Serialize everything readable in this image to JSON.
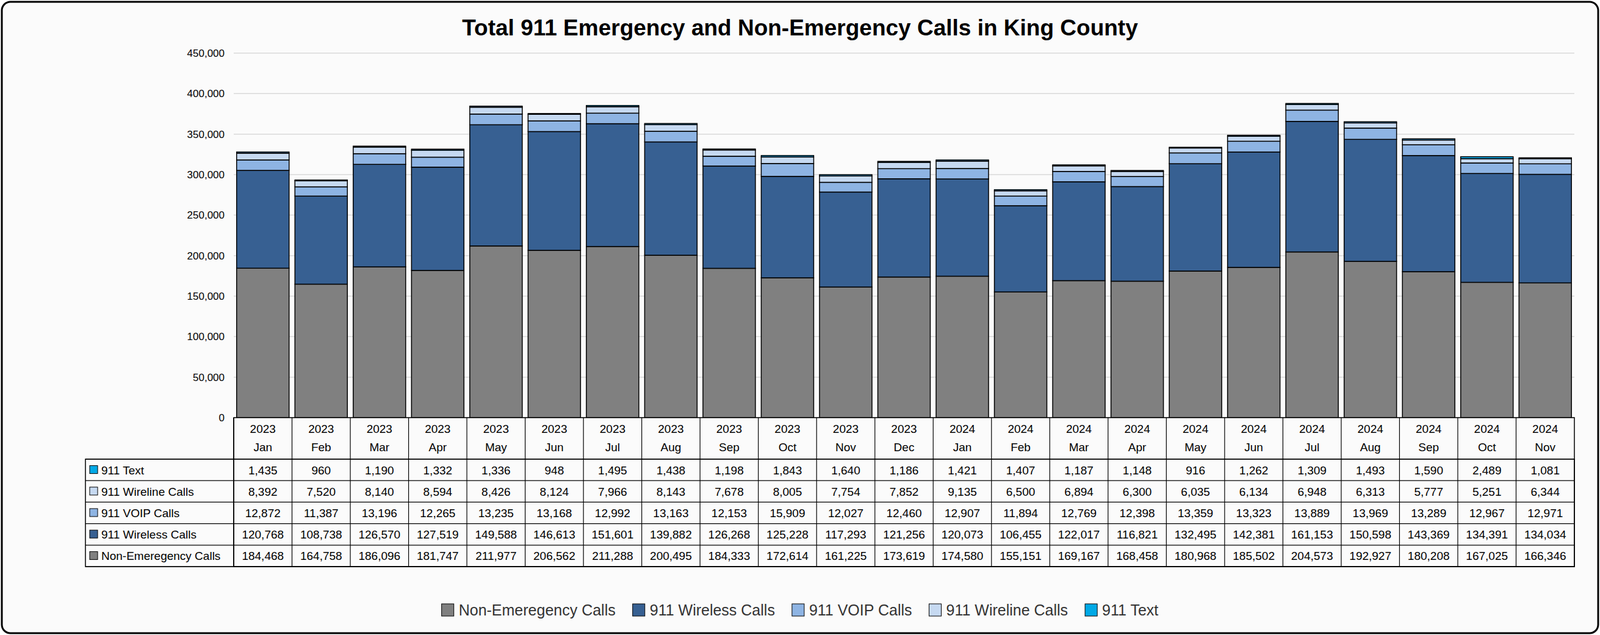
{
  "chart_data": {
    "type": "bar",
    "title": "Total 911 Emergency and Non-Emergency Calls in King County",
    "stacked": true,
    "grid": true,
    "legend": "bottom",
    "categories": [
      "2023 Jan",
      "2023 Feb",
      "2023 Mar",
      "2023 Apr",
      "2023 May",
      "2023 Jun",
      "2023 Jul",
      "2023 Aug",
      "2023 Sep",
      "2023 Oct",
      "2023 Nov",
      "2023 Dec",
      "2024 Jan",
      "2024 Feb",
      "2024 Mar",
      "2024 Apr",
      "2024 May",
      "2024 Jun",
      "2024 Jul",
      "2024 Aug",
      "2024 Sep",
      "2024 Oct",
      "2024 Nov"
    ],
    "ylim": [
      0,
      450000
    ],
    "yticks": [
      0,
      {
        "value": 50000,
        "label": "50,000"
      },
      {
        "value": 100000,
        "label": "100,000"
      },
      {
        "value": 150000,
        "label": "150,000"
      },
      {
        "value": 200000,
        "label": "200,000"
      },
      {
        "value": 250000,
        "label": "250,000"
      },
      {
        "value": 300000,
        "label": "300,000"
      },
      {
        "value": 350000,
        "label": "350,000"
      },
      {
        "value": 400000,
        "label": "400,000"
      },
      {
        "value": 450000,
        "label": "450,000"
      }
    ],
    "series": [
      {
        "name": "Non-Emeregency Calls",
        "color": "#808080",
        "values": [
          184468,
          164758,
          186096,
          181747,
          211977,
          206562,
          211288,
          200495,
          184333,
          172614,
          161225,
          173619,
          174580,
          155151,
          169167,
          168458,
          180968,
          185502,
          204573,
          192927,
          180208,
          167025,
          166346
        ],
        "value_labels": [
          "184,468",
          "164,758",
          "186,096",
          "181,747",
          "211,977",
          "206,562",
          "211,288",
          "200,495",
          "184,333",
          "172,614",
          "161,225",
          "173,619",
          "174,580",
          "155,151",
          "169,167",
          "168,458",
          "180,968",
          "185,502",
          "204,573",
          "192,927",
          "180,208",
          "167,025",
          "166,346"
        ]
      },
      {
        "name": "911 Wireless Calls",
        "color": "#376092",
        "values": [
          120768,
          108738,
          126570,
          127519,
          149588,
          146613,
          151601,
          139882,
          126268,
          125228,
          117293,
          121256,
          120073,
          106455,
          122017,
          116821,
          132495,
          142381,
          161153,
          150598,
          143369,
          134391,
          134034
        ],
        "value_labels": [
          "120,768",
          "108,738",
          "126,570",
          "127,519",
          "149,588",
          "146,613",
          "151,601",
          "139,882",
          "126,268",
          "125,228",
          "117,293",
          "121,256",
          "120,073",
          "106,455",
          "122,017",
          "116,821",
          "132,495",
          "142,381",
          "161,153",
          "150,598",
          "143,369",
          "134,391",
          "134,034"
        ]
      },
      {
        "name": "911 VOIP Calls",
        "color": "#8eb4e3",
        "values": [
          12872,
          11387,
          13196,
          12265,
          13235,
          13168,
          12992,
          13163,
          12153,
          15909,
          12027,
          12460,
          12907,
          11894,
          12769,
          12398,
          13359,
          13323,
          13889,
          13969,
          13289,
          12967,
          12971
        ],
        "value_labels": [
          "12,872",
          "11,387",
          "13,196",
          "12,265",
          "13,235",
          "13,168",
          "12,992",
          "13,163",
          "12,153",
          "15,909",
          "12,027",
          "12,460",
          "12,907",
          "11,894",
          "12,769",
          "12,398",
          "13,359",
          "13,323",
          "13,889",
          "13,969",
          "13,289",
          "12,967",
          "12,971"
        ]
      },
      {
        "name": "911 Wireline Calls",
        "color": "#c6d9f1",
        "values": [
          8392,
          7520,
          8140,
          8594,
          8426,
          8124,
          7966,
          8143,
          7678,
          8005,
          7754,
          7852,
          9135,
          6500,
          6894,
          6300,
          6035,
          6134,
          6948,
          6313,
          5777,
          5251,
          6344
        ],
        "value_labels": [
          "8,392",
          "7,520",
          "8,140",
          "8,594",
          "8,426",
          "8,124",
          "7,966",
          "8,143",
          "7,678",
          "8,005",
          "7,754",
          "7,852",
          "9,135",
          "6,500",
          "6,894",
          "6,300",
          "6,035",
          "6,134",
          "6,948",
          "6,313",
          "5,777",
          "5,251",
          "6,344"
        ]
      },
      {
        "name": "911 Text",
        "color": "#00a9e6",
        "values": [
          1435,
          960,
          1190,
          1332,
          1336,
          948,
          1495,
          1438,
          1198,
          1843,
          1640,
          1186,
          1421,
          1407,
          1187,
          1148,
          916,
          1262,
          1309,
          1493,
          1590,
          2489,
          1081
        ],
        "value_labels": [
          "1,435",
          "960",
          "1,190",
          "1,332",
          "1,336",
          "948",
          "1,495",
          "1,438",
          "1,198",
          "1,843",
          "1,640",
          "1,186",
          "1,421",
          "1,407",
          "1,187",
          "1,148",
          "916",
          "1,262",
          "1,309",
          "1,493",
          "1,590",
          "2,489",
          "1,081"
        ]
      }
    ]
  }
}
